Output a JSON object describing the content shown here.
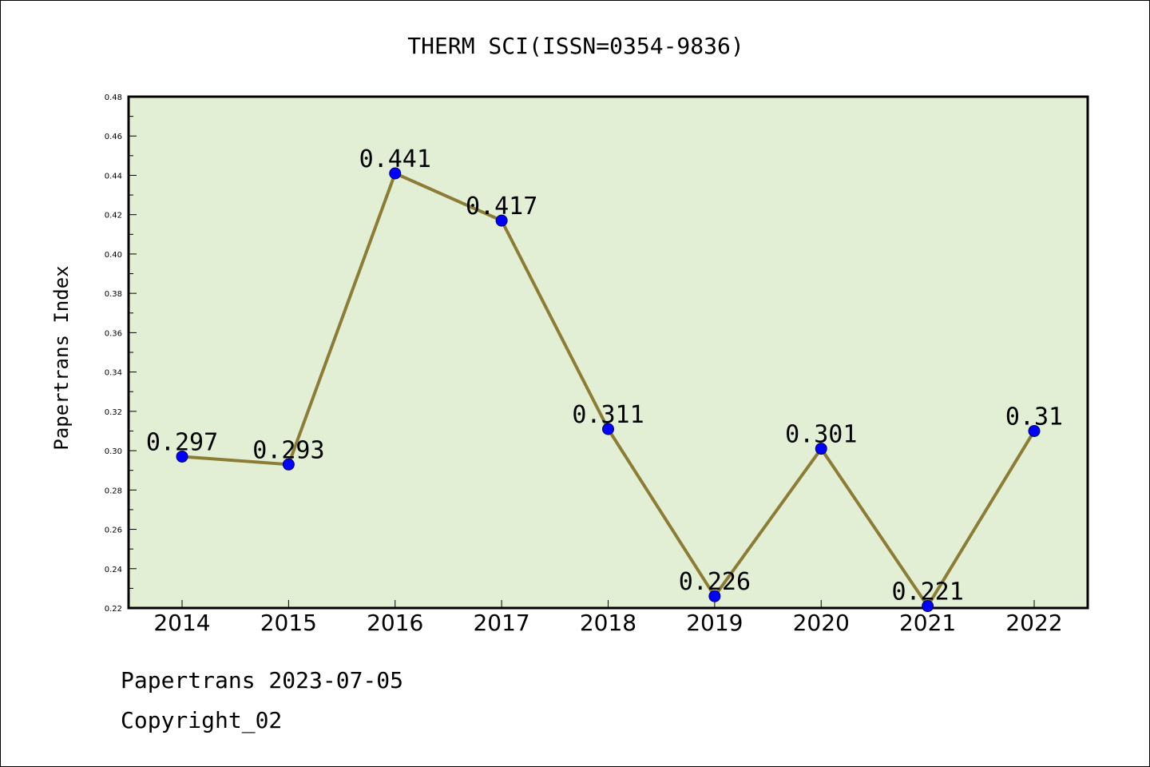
{
  "chart_data": {
    "type": "line",
    "title": "THERM SCI(ISSN=0354-9836)",
    "xlabel": "",
    "ylabel": "Papertrans Index",
    "categories": [
      "2014",
      "2015",
      "2016",
      "2017",
      "2018",
      "2019",
      "2020",
      "2021",
      "2022"
    ],
    "values": [
      0.297,
      0.293,
      0.441,
      0.417,
      0.311,
      0.226,
      0.301,
      0.221,
      0.31
    ],
    "data_labels": [
      "0.297",
      "0.293",
      "0.441",
      "0.417",
      "0.311",
      "0.226",
      "0.301",
      "0.221",
      "0.31"
    ],
    "ylim": [
      0.22,
      0.48
    ],
    "yticks": [
      "0.22",
      "0.24",
      "0.26",
      "0.28",
      "0.30",
      "0.32",
      "0.34",
      "0.36",
      "0.38",
      "0.40",
      "0.42",
      "0.44",
      "0.46",
      "0.48"
    ],
    "grid": false,
    "legend": "none",
    "colors": {
      "plot_background": "#e2efd5",
      "line": "#8b7d36",
      "marker": "#0000ff"
    }
  },
  "footer": {
    "line1": "Papertrans 2023-07-05",
    "line2": "Copyright_02"
  }
}
